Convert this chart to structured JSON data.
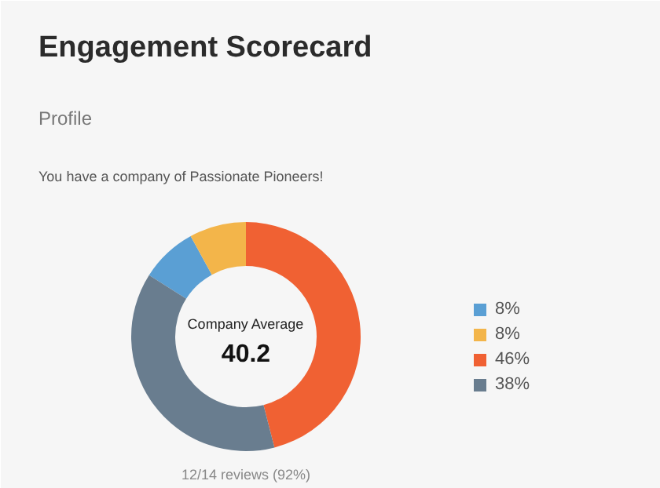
{
  "chart_data": {
    "type": "donut",
    "title": "Engagement Scorecard",
    "subtitle": "Profile",
    "annotations": [
      "You have a company of Passionate Pioneers!",
      "Company Average",
      "40.2",
      "12/14 reviews (92%)"
    ],
    "categories": [
      "8%",
      "8%",
      "46%",
      "38%"
    ],
    "values": [
      8,
      8,
      46,
      38
    ],
    "colors": [
      "#5a9fd4",
      "#f3b54a",
      "#f06133",
      "#697d8f"
    ],
    "legend": "right"
  }
}
